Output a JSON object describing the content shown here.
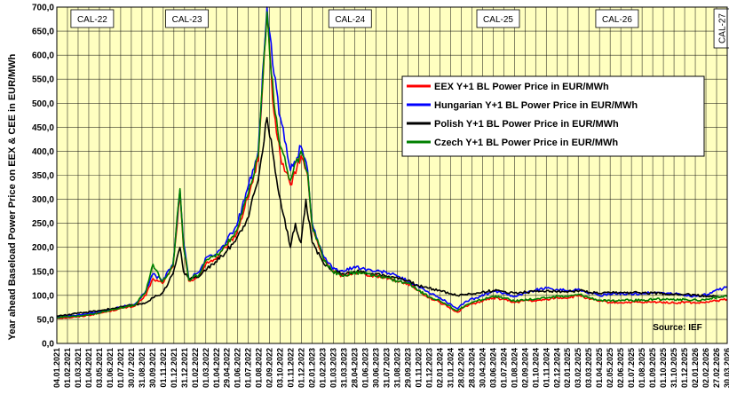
{
  "chart_data": {
    "type": "line",
    "ylabel": "Year ahead Baseload Power Price on EEX & CEE in EUR/MWh",
    "ylim": [
      0,
      700
    ],
    "yticks": [
      0,
      50,
      100,
      150,
      200,
      250,
      300,
      350,
      400,
      450,
      500,
      550,
      600,
      650,
      700
    ],
    "ytick_labels": [
      "0,0",
      "50,0",
      "100,0",
      "150,0",
      "200,0",
      "250,0",
      "300,0",
      "350,0",
      "400,0",
      "450,0",
      "500,0",
      "550,0",
      "600,0",
      "650,0",
      "700,0"
    ],
    "xlim": [
      "2021-01-04",
      "2026-03-30"
    ],
    "xtick_labels": [
      "04.01.2021",
      "01.02.2021",
      "01.03.2021",
      "01.04.2021",
      "03.05.2021",
      "01.06.2021",
      "01.07.2021",
      "30.07.2021",
      "31.08.2021",
      "30.09.2021",
      "01.11.2021",
      "01.12.2021",
      "31.12.2021",
      "01.02.2022",
      "01.03.2022",
      "01.04.2022",
      "29.04.2022",
      "01.06.2022",
      "01.07.2022",
      "01.08.2022",
      "02.09.2022",
      "03.10.2022",
      "01.11.2022",
      "01.12.2022",
      "02.01.2023",
      "01.02.2023",
      "01.03.2023",
      "31.03.2023",
      "28.04.2023",
      "01.06.2023",
      "30.06.2023",
      "31.07.2023",
      "31.08.2023",
      "29.09.2023",
      "01.11.2023",
      "01.12.2023",
      "02.01.2024",
      "31.01.2024",
      "28.02.2024",
      "28.03.2024",
      "30.04.2024",
      "03.06.2024",
      "01.07.2024",
      "01.08.2024",
      "02.09.2024",
      "01.10.2024",
      "01.11.2024",
      "02.12.2024",
      "02.01.2025",
      "03.02.2025",
      "03.03.2025",
      "01.04.2025",
      "02.05.2025",
      "02.06.2025",
      "01.07.2025",
      "01.08.2025",
      "01.09.2025",
      "01.10.2025",
      "31.10.2025",
      "01.12.2025",
      "02.01.2026",
      "02.02.2026",
      "27.02.2026",
      "30.03.2026"
    ],
    "grid": true,
    "legend_position": "right",
    "source_text": "Source: IEF",
    "period_labels": [
      {
        "label": "CAL-22",
        "date": "2021-04-15"
      },
      {
        "label": "CAL-23",
        "date": "2022-01-10"
      },
      {
        "label": "CAL-24",
        "date": "2023-04-20"
      },
      {
        "label": "CAL-25",
        "date": "2024-06-15"
      },
      {
        "label": "CAL-26",
        "date": "2025-05-20"
      },
      {
        "label": "CAL-27",
        "date": "2026-03-15",
        "vertical": true
      }
    ],
    "series": [
      {
        "name": "EEX Y+1 BL Power Price in EUR/MWh",
        "color": "#ff0000",
        "points": [
          [
            "2021-01-04",
            53
          ],
          [
            "2021-03-01",
            55
          ],
          [
            "2021-05-01",
            62
          ],
          [
            "2021-07-01",
            72
          ],
          [
            "2021-08-15",
            78
          ],
          [
            "2021-09-15",
            100
          ],
          [
            "2021-10-05",
            135
          ],
          [
            "2021-11-01",
            125
          ],
          [
            "2021-12-01",
            160
          ],
          [
            "2021-12-21",
            310
          ],
          [
            "2021-12-31",
            200
          ],
          [
            "2022-01-15",
            130
          ],
          [
            "2022-02-15",
            140
          ],
          [
            "2022-03-08",
            170
          ],
          [
            "2022-04-01",
            175
          ],
          [
            "2022-05-01",
            200
          ],
          [
            "2022-06-01",
            230
          ],
          [
            "2022-07-01",
            300
          ],
          [
            "2022-08-01",
            380
          ],
          [
            "2022-08-26",
            680
          ],
          [
            "2022-09-15",
            480
          ],
          [
            "2022-10-03",
            390
          ],
          [
            "2022-11-01",
            330
          ],
          [
            "2022-12-01",
            390
          ],
          [
            "2022-12-20",
            350
          ],
          [
            "2023-01-02",
            240
          ],
          [
            "2023-02-01",
            180
          ],
          [
            "2023-03-01",
            150
          ],
          [
            "2023-04-01",
            140
          ],
          [
            "2023-05-01",
            148
          ],
          [
            "2023-06-01",
            145
          ],
          [
            "2023-07-01",
            140
          ],
          [
            "2023-08-01",
            138
          ],
          [
            "2023-09-01",
            130
          ],
          [
            "2023-10-01",
            125
          ],
          [
            "2023-11-01",
            110
          ],
          [
            "2023-12-01",
            95
          ],
          [
            "2024-01-02",
            85
          ],
          [
            "2024-02-20",
            65
          ],
          [
            "2024-03-15",
            78
          ],
          [
            "2024-04-15",
            85
          ],
          [
            "2024-06-01",
            95
          ],
          [
            "2024-07-01",
            92
          ],
          [
            "2024-08-01",
            85
          ],
          [
            "2024-09-02",
            90
          ],
          [
            "2024-10-01",
            88
          ],
          [
            "2024-11-01",
            92
          ],
          [
            "2024-12-02",
            95
          ],
          [
            "2025-01-02",
            95
          ],
          [
            "2025-02-03",
            100
          ],
          [
            "2025-03-03",
            92
          ],
          [
            "2025-04-01",
            88
          ],
          [
            "2025-05-02",
            85
          ],
          [
            "2025-06-02",
            85
          ],
          [
            "2025-07-01",
            86
          ],
          [
            "2025-08-01",
            85
          ],
          [
            "2025-09-01",
            86
          ],
          [
            "2025-10-01",
            86
          ],
          [
            "2025-11-01",
            84
          ],
          [
            "2025-12-01",
            86
          ],
          [
            "2026-01-02",
            84
          ],
          [
            "2026-02-02",
            86
          ],
          [
            "2026-03-30",
            92
          ]
        ]
      },
      {
        "name": "Hungarian Y+1 BL Power Price in EUR/MWh",
        "color": "#0000ff",
        "points": [
          [
            "2021-01-04",
            55
          ],
          [
            "2021-03-01",
            58
          ],
          [
            "2021-05-01",
            65
          ],
          [
            "2021-07-01",
            75
          ],
          [
            "2021-08-15",
            82
          ],
          [
            "2021-09-15",
            110
          ],
          [
            "2021-10-05",
            145
          ],
          [
            "2021-11-01",
            130
          ],
          [
            "2021-12-01",
            165
          ],
          [
            "2021-12-21",
            320
          ],
          [
            "2021-12-31",
            210
          ],
          [
            "2022-01-15",
            135
          ],
          [
            "2022-02-15",
            150
          ],
          [
            "2022-03-08",
            180
          ],
          [
            "2022-04-01",
            185
          ],
          [
            "2022-05-01",
            210
          ],
          [
            "2022-06-01",
            245
          ],
          [
            "2022-07-01",
            320
          ],
          [
            "2022-08-01",
            400
          ],
          [
            "2022-08-26",
            700
          ],
          [
            "2022-09-15",
            560
          ],
          [
            "2022-10-03",
            470
          ],
          [
            "2022-11-01",
            360
          ],
          [
            "2022-12-01",
            410
          ],
          [
            "2022-12-20",
            360
          ],
          [
            "2023-01-02",
            250
          ],
          [
            "2023-02-01",
            185
          ],
          [
            "2023-03-01",
            155
          ],
          [
            "2023-04-01",
            150
          ],
          [
            "2023-05-01",
            160
          ],
          [
            "2023-06-01",
            155
          ],
          [
            "2023-07-01",
            150
          ],
          [
            "2023-08-01",
            148
          ],
          [
            "2023-09-01",
            140
          ],
          [
            "2023-10-01",
            130
          ],
          [
            "2023-11-01",
            118
          ],
          [
            "2023-12-01",
            105
          ],
          [
            "2024-01-02",
            95
          ],
          [
            "2024-02-20",
            72
          ],
          [
            "2024-03-15",
            88
          ],
          [
            "2024-04-15",
            95
          ],
          [
            "2024-06-01",
            108
          ],
          [
            "2024-07-01",
            105
          ],
          [
            "2024-08-01",
            98
          ],
          [
            "2024-09-02",
            105
          ],
          [
            "2024-10-01",
            112
          ],
          [
            "2024-11-01",
            115
          ],
          [
            "2024-12-02",
            112
          ],
          [
            "2025-01-02",
            110
          ],
          [
            "2025-02-03",
            112
          ],
          [
            "2025-03-03",
            105
          ],
          [
            "2025-04-01",
            100
          ],
          [
            "2025-05-02",
            102
          ],
          [
            "2025-06-02",
            105
          ],
          [
            "2025-07-01",
            102
          ],
          [
            "2025-08-01",
            104
          ],
          [
            "2025-09-01",
            106
          ],
          [
            "2025-10-01",
            105
          ],
          [
            "2025-11-01",
            103
          ],
          [
            "2025-12-01",
            100
          ],
          [
            "2026-01-02",
            98
          ],
          [
            "2026-02-02",
            102
          ],
          [
            "2026-03-30",
            118
          ]
        ]
      },
      {
        "name": "Polish Y+1 BL Power Price in EUR/MWh",
        "color": "#000000",
        "points": [
          [
            "2021-01-04",
            57
          ],
          [
            "2021-03-01",
            62
          ],
          [
            "2021-05-01",
            68
          ],
          [
            "2021-07-01",
            75
          ],
          [
            "2021-08-15",
            80
          ],
          [
            "2021-09-15",
            85
          ],
          [
            "2021-10-05",
            95
          ],
          [
            "2021-11-01",
            105
          ],
          [
            "2021-12-01",
            145
          ],
          [
            "2021-12-21",
            200
          ],
          [
            "2021-12-31",
            150
          ],
          [
            "2022-01-15",
            135
          ],
          [
            "2022-02-15",
            140
          ],
          [
            "2022-03-08",
            155
          ],
          [
            "2022-04-01",
            170
          ],
          [
            "2022-05-01",
            190
          ],
          [
            "2022-06-01",
            220
          ],
          [
            "2022-07-01",
            260
          ],
          [
            "2022-08-01",
            340
          ],
          [
            "2022-08-26",
            470
          ],
          [
            "2022-09-15",
            380
          ],
          [
            "2022-10-03",
            300
          ],
          [
            "2022-11-01",
            200
          ],
          [
            "2022-11-15",
            250
          ],
          [
            "2022-12-01",
            210
          ],
          [
            "2022-12-15",
            300
          ],
          [
            "2023-01-02",
            210
          ],
          [
            "2023-02-01",
            170
          ],
          [
            "2023-03-01",
            150
          ],
          [
            "2023-04-01",
            145
          ],
          [
            "2023-05-01",
            150
          ],
          [
            "2023-06-01",
            148
          ],
          [
            "2023-07-01",
            145
          ],
          [
            "2023-08-01",
            140
          ],
          [
            "2023-09-01",
            138
          ],
          [
            "2023-10-01",
            130
          ],
          [
            "2023-11-01",
            120
          ],
          [
            "2023-12-01",
            115
          ],
          [
            "2024-01-02",
            110
          ],
          [
            "2024-02-20",
            100
          ],
          [
            "2024-03-15",
            102
          ],
          [
            "2024-04-15",
            105
          ],
          [
            "2024-06-01",
            110
          ],
          [
            "2024-07-01",
            108
          ],
          [
            "2024-08-01",
            105
          ],
          [
            "2024-09-02",
            107
          ],
          [
            "2024-10-01",
            108
          ],
          [
            "2024-11-01",
            110
          ],
          [
            "2024-12-02",
            108
          ],
          [
            "2025-01-02",
            108
          ],
          [
            "2025-02-03",
            110
          ],
          [
            "2025-03-03",
            106
          ],
          [
            "2025-04-01",
            104
          ],
          [
            "2025-05-02",
            105
          ],
          [
            "2025-06-02",
            106
          ],
          [
            "2025-07-01",
            105
          ],
          [
            "2025-08-01",
            106
          ],
          [
            "2025-09-01",
            105
          ],
          [
            "2025-10-01",
            104
          ],
          [
            "2025-11-01",
            103
          ],
          [
            "2025-12-01",
            102
          ],
          [
            "2026-01-02",
            100
          ],
          [
            "2026-02-02",
            98
          ],
          [
            "2026-03-30",
            98
          ]
        ]
      },
      {
        "name": "Czech Y+1 BL Power Price in EUR/MWh",
        "color": "#008000",
        "points": [
          [
            "2021-01-04",
            54
          ],
          [
            "2021-03-01",
            56
          ],
          [
            "2021-05-01",
            63
          ],
          [
            "2021-07-01",
            73
          ],
          [
            "2021-08-15",
            80
          ],
          [
            "2021-09-15",
            108
          ],
          [
            "2021-10-05",
            165
          ],
          [
            "2021-11-01",
            128
          ],
          [
            "2021-12-01",
            162
          ],
          [
            "2021-12-21",
            322
          ],
          [
            "2021-12-31",
            205
          ],
          [
            "2022-01-15",
            132
          ],
          [
            "2022-02-15",
            145
          ],
          [
            "2022-03-08",
            175
          ],
          [
            "2022-04-01",
            180
          ],
          [
            "2022-05-01",
            205
          ],
          [
            "2022-06-01",
            235
          ],
          [
            "2022-07-01",
            305
          ],
          [
            "2022-08-01",
            390
          ],
          [
            "2022-08-26",
            690
          ],
          [
            "2022-09-15",
            500
          ],
          [
            "2022-10-03",
            410
          ],
          [
            "2022-11-01",
            340
          ],
          [
            "2022-12-01",
            400
          ],
          [
            "2022-12-20",
            355
          ],
          [
            "2023-01-02",
            245
          ],
          [
            "2023-02-01",
            180
          ],
          [
            "2023-03-01",
            150
          ],
          [
            "2023-04-01",
            140
          ],
          [
            "2023-05-01",
            148
          ],
          [
            "2023-06-01",
            145
          ],
          [
            "2023-07-01",
            140
          ],
          [
            "2023-08-01",
            138
          ],
          [
            "2023-09-01",
            130
          ],
          [
            "2023-10-01",
            125
          ],
          [
            "2023-11-01",
            110
          ],
          [
            "2023-12-01",
            97
          ],
          [
            "2024-01-02",
            88
          ],
          [
            "2024-02-20",
            68
          ],
          [
            "2024-03-15",
            80
          ],
          [
            "2024-04-15",
            88
          ],
          [
            "2024-06-01",
            98
          ],
          [
            "2024-07-01",
            95
          ],
          [
            "2024-08-01",
            88
          ],
          [
            "2024-09-02",
            92
          ],
          [
            "2024-10-01",
            92
          ],
          [
            "2024-11-01",
            95
          ],
          [
            "2024-12-02",
            98
          ],
          [
            "2025-01-02",
            98
          ],
          [
            "2025-02-03",
            102
          ],
          [
            "2025-03-03",
            95
          ],
          [
            "2025-04-01",
            90
          ],
          [
            "2025-05-02",
            88
          ],
          [
            "2025-06-02",
            90
          ],
          [
            "2025-07-01",
            90
          ],
          [
            "2025-08-01",
            90
          ],
          [
            "2025-09-01",
            92
          ],
          [
            "2025-10-01",
            92
          ],
          [
            "2025-11-01",
            90
          ],
          [
            "2025-12-01",
            92
          ],
          [
            "2026-01-02",
            90
          ],
          [
            "2026-02-02",
            92
          ],
          [
            "2026-03-30",
            100
          ]
        ]
      }
    ]
  }
}
